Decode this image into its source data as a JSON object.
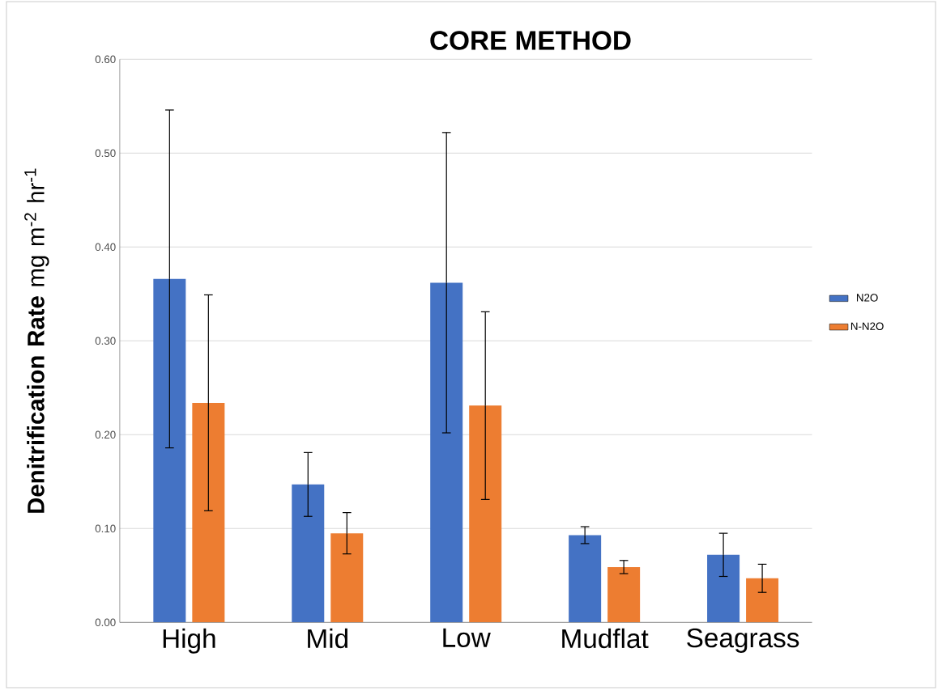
{
  "chart_data": {
    "type": "bar",
    "title": "CORE METHOD",
    "ylabel": "**Denitrification Rate** mg m$^{-2}$ hr$^{-1}$",
    "categories": [
      "High",
      "Mid",
      "Low",
      "Mudflat",
      "Seagrass"
    ],
    "series": [
      {
        "name": "N2O",
        "color": "#4472c4",
        "values": [
          0.366,
          0.147,
          0.362,
          0.093,
          0.072
        ],
        "errors": [
          0.18,
          0.034,
          0.16,
          0.009,
          0.023
        ]
      },
      {
        "name": "N-N2O",
        "color": "#ed7d31",
        "values": [
          0.234,
          0.095,
          0.231,
          0.059,
          0.047
        ],
        "errors": [
          0.115,
          0.022,
          0.1,
          0.007,
          0.015
        ]
      }
    ],
    "ylim": [
      0,
      0.6
    ],
    "yticks": [
      {
        "value": 0,
        "label": "0.00"
      },
      {
        "value": 0.1,
        "label": "0.10"
      },
      {
        "value": 0.2,
        "label": "0.20"
      },
      {
        "value": 0.3,
        "label": "0.30"
      },
      {
        "value": 0.4,
        "label": "0.40"
      },
      {
        "value": 0.5,
        "label": "0.50"
      },
      {
        "value": 0.6,
        "label": "0.60"
      }
    ],
    "grid": "y",
    "legend": "right"
  }
}
